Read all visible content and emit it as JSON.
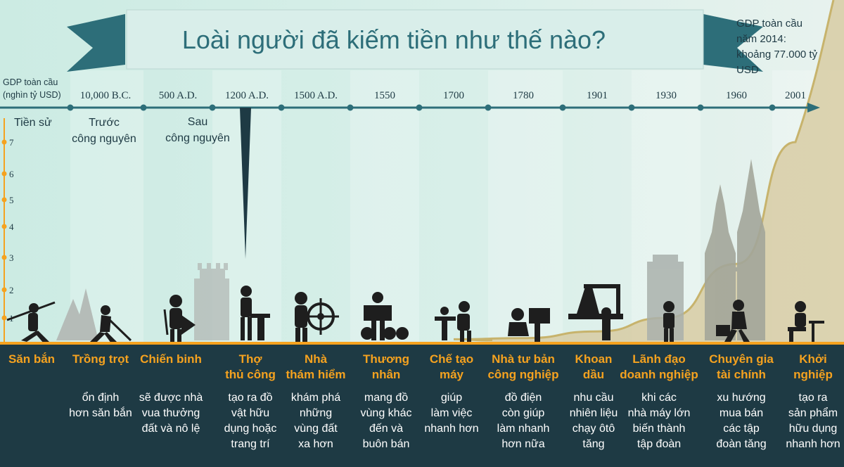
{
  "title": "Loài người đã kiếm tiền như thế nào?",
  "note": [
    "GDP toàn cầu",
    "năm 2014:",
    "khoảng 77.000 tỷ",
    "USD"
  ],
  "axis": {
    "y_label": [
      "GDP toàn cầu",
      "(nghìn tỷ USD)"
    ],
    "y_ticks": [
      "1",
      "2",
      "3",
      "4",
      "5",
      "6",
      "7"
    ],
    "eras": [
      {
        "lines": [
          "Tiền sử"
        ]
      },
      {
        "lines": [
          "Trước",
          "công nguyên"
        ]
      },
      {
        "lines": [
          "Sau",
          "công nguyên"
        ]
      }
    ]
  },
  "chart_data": {
    "type": "area",
    "x": [
      "10,000 B.C.",
      "500 A.D.",
      "1200 A.D.",
      "1500 A.D.",
      "1550",
      "1700",
      "1780",
      "1901",
      "1930",
      "1960",
      "2001"
    ],
    "ylabel": "GDP toàn cầu (nghìn tỷ USD)",
    "ylim": [
      0,
      7
    ],
    "values": [
      0,
      0,
      0,
      0,
      0,
      0.05,
      0.1,
      0.4,
      1.0,
      2.8,
      7
    ],
    "annotation": "GDP toàn cầu năm 2014: khoảng 77.000 tỷ USD"
  },
  "occupations": [
    {
      "title": [
        "Săn bắn"
      ],
      "desc": []
    },
    {
      "title": [
        "Trồng trọt"
      ],
      "desc": [
        "ổn định",
        "hơn săn bắn"
      ]
    },
    {
      "title": [
        "Chiến binh"
      ],
      "desc": [
        "sẽ được nhà",
        "vua thưởng",
        "đất và nô lệ"
      ]
    },
    {
      "title": [
        "Thợ",
        "thủ công"
      ],
      "desc": [
        "tạo ra đồ",
        "vật hữu",
        "dụng hoặc",
        "trang trí"
      ]
    },
    {
      "title": [
        "Nhà",
        "thám hiểm"
      ],
      "desc": [
        "khám phá",
        "những",
        "vùng đất",
        "xa hơn"
      ]
    },
    {
      "title": [
        "Thương",
        "nhân"
      ],
      "desc": [
        "mang đồ",
        "vùng khác",
        "đến và",
        "buôn bán"
      ]
    },
    {
      "title": [
        "Chế tạo",
        "máy"
      ],
      "desc": [
        "giúp",
        "làm việc",
        "nhanh hơn"
      ]
    },
    {
      "title": [
        "Nhà tư bản",
        "công nghiệp"
      ],
      "desc": [
        "đồ điện",
        "còn giúp",
        "làm nhanh",
        "hơn nữa"
      ]
    },
    {
      "title": [
        "Khoan",
        "dầu"
      ],
      "desc": [
        "nhu cầu",
        "nhiên liệu",
        "chạy ôtô",
        "tăng"
      ]
    },
    {
      "title": [
        "Lãnh đạo",
        "doanh nghiệp"
      ],
      "desc": [
        "khi các",
        "nhà máy lớn",
        "biến thành",
        "tập đoàn"
      ]
    },
    {
      "title": [
        "Chuyên gia",
        "tài chính"
      ],
      "desc": [
        "xu hướng",
        "mua bán",
        "các tập",
        "đoàn tăng"
      ]
    },
    {
      "title": [
        "Khởi",
        "nghiệp"
      ],
      "desc": [
        "tạo ra",
        "sản phẩm",
        "hữu dụng",
        "nhanh hơn"
      ]
    }
  ],
  "colors": {
    "bg_dark": "#1e3a44",
    "accent": "#f5a21f",
    "teal": "#2d6e79",
    "ribbon": "#d9eeea",
    "silhouette": "#1e1e1e",
    "gdp_area": "#d6c79a"
  }
}
